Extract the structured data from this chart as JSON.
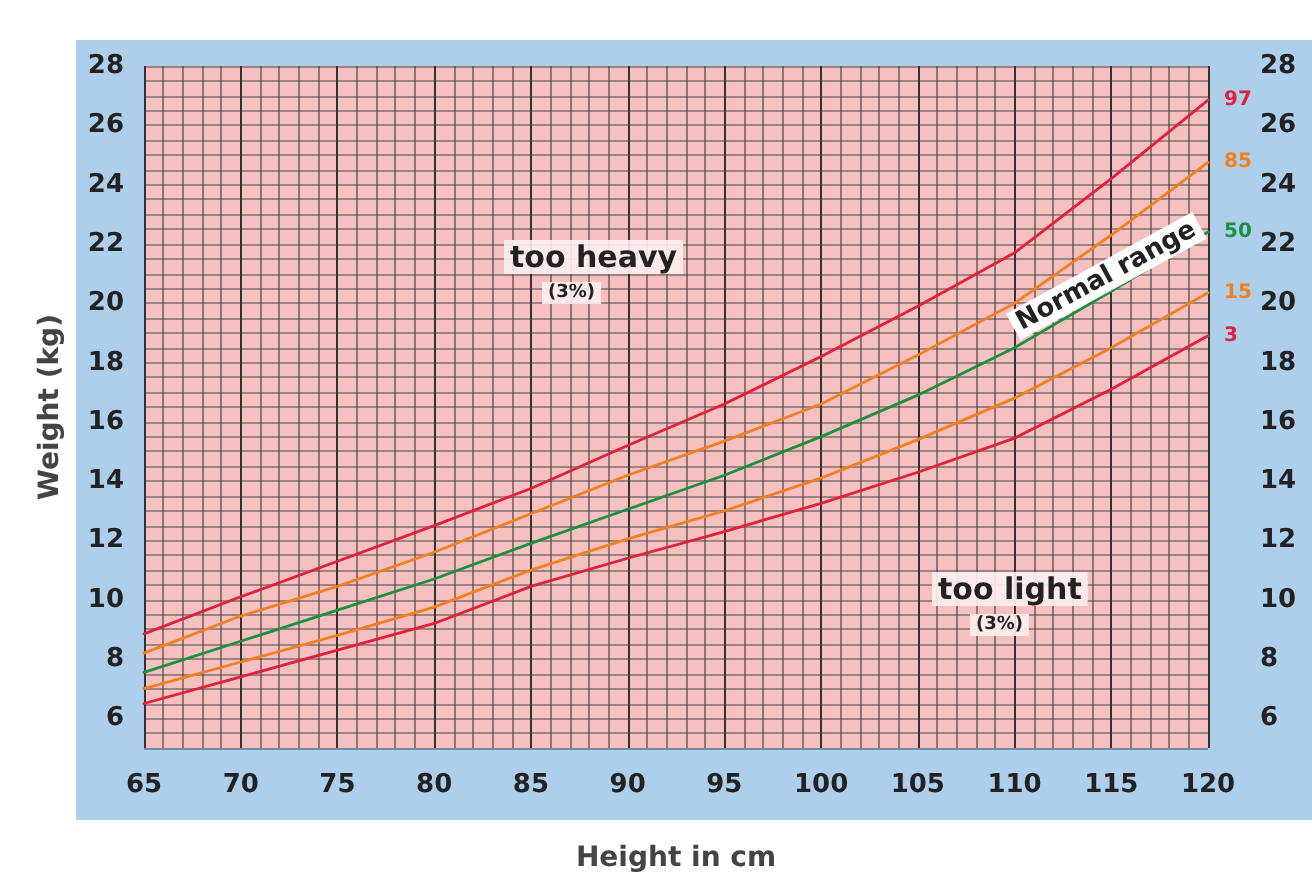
{
  "chart_data": {
    "type": "line",
    "xlabel": "Height in cm",
    "ylabel": "Weight (kg)",
    "x": [
      65,
      70,
      75,
      80,
      85,
      90,
      95,
      100,
      105,
      110,
      115,
      120
    ],
    "series": [
      {
        "name": "97",
        "color": "#e0203c",
        "values": [
          8.85,
          10.1,
          11.3,
          12.5,
          13.75,
          15.2,
          16.6,
          18.2,
          19.9,
          21.7,
          24.2,
          26.85
        ]
      },
      {
        "name": "85",
        "color": "#f08020",
        "values": [
          8.2,
          9.45,
          10.45,
          11.6,
          12.9,
          14.2,
          15.35,
          16.6,
          18.25,
          20.0,
          22.3,
          24.75
        ]
      },
      {
        "name": "50",
        "color": "#1a9040",
        "values": [
          7.55,
          8.6,
          9.65,
          10.7,
          11.9,
          13.05,
          14.2,
          15.5,
          16.9,
          18.5,
          20.4,
          22.4
        ]
      },
      {
        "name": "15",
        "color": "#f08020",
        "values": [
          7.0,
          7.9,
          8.8,
          9.75,
          11.0,
          12.05,
          13.0,
          14.1,
          15.4,
          16.8,
          18.5,
          20.35
        ]
      },
      {
        "name": "3",
        "color": "#e0203c",
        "values": [
          6.5,
          7.4,
          8.3,
          9.2,
          10.45,
          11.4,
          12.3,
          13.25,
          14.3,
          15.45,
          17.1,
          18.9
        ]
      }
    ],
    "xlim": [
      65,
      120
    ],
    "xticks": [
      65,
      70,
      75,
      80,
      85,
      90,
      95,
      100,
      105,
      110,
      115,
      120
    ],
    "ylim": [
      5,
      28
    ],
    "yticks": [
      6,
      8,
      10,
      12,
      14,
      16,
      18,
      20,
      22,
      24,
      26,
      28
    ],
    "y2lim": [
      5,
      28
    ],
    "y2ticks": [
      6,
      8,
      10,
      12,
      14,
      16,
      18,
      20,
      22,
      24,
      26,
      28
    ],
    "annotations": [
      "too heavy",
      "(3%)",
      "too light",
      "(3%)",
      "Normal range"
    ],
    "grid": true,
    "legend": false,
    "marker": "none",
    "line_style": "solid"
  }
}
